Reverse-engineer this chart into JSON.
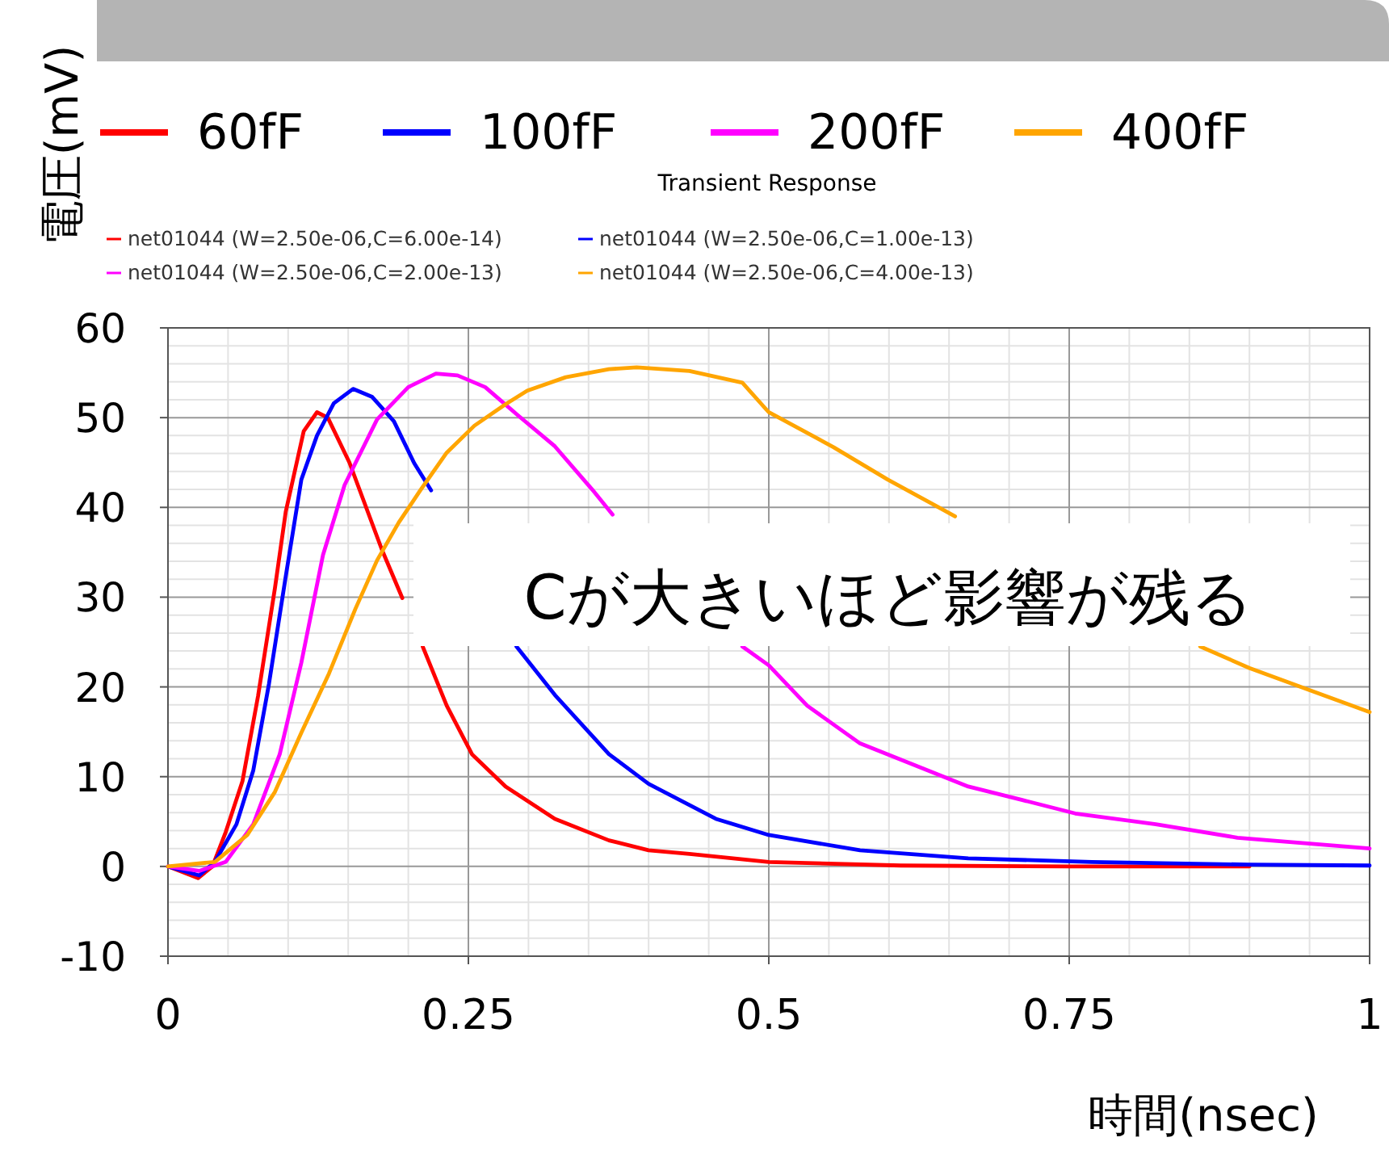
{
  "chart_data": {
    "type": "line",
    "title": "Transient Response",
    "xlabel": "時間(nsec)",
    "ylabel": "電圧(mV)",
    "xlim": [
      0,
      1
    ],
    "ylim": [
      -10,
      60
    ],
    "xticks": [
      0,
      0.25,
      0.5,
      0.75,
      1
    ],
    "yticks": [
      -10,
      0,
      10,
      20,
      30,
      40,
      50,
      60
    ],
    "grid": true,
    "legend": "top",
    "marker": "none",
    "line_style": "solid",
    "annotations": [
      "net01044 (W=2.50e-06,C=6.00e-14)",
      "net01044 (W=2.50e-06,C=1.00e-13)",
      "net01044 (W=2.50e-06,C=2.00e-13)",
      "net01044 (W=2.50e-06,C=4.00e-13)",
      "Cが大きいほど影響が残る"
    ],
    "series": [
      {
        "name": "60fF",
        "color": "#ff0000",
        "x": [
          0,
          0.025,
          0.037,
          0.048,
          0.062,
          0.075,
          0.089,
          0.098,
          0.113,
          0.124,
          0.133,
          0.151,
          0.178,
          0.195,
          0.2,
          0.212,
          0.232,
          0.253,
          0.281,
          0.322,
          0.367,
          0.4,
          0.434,
          0.5,
          0.61,
          0.75,
          0.9
        ],
        "values": [
          0,
          -1.3,
          0,
          3.8,
          9.5,
          19,
          31,
          39.5,
          48.5,
          50.6,
          50,
          45,
          35.3,
          29.9,
          null,
          24.5,
          17.9,
          12.5,
          8.9,
          5.3,
          2.9,
          1.8,
          1.4,
          0.5,
          0.1,
          0,
          0
        ]
      },
      {
        "name": "100fF",
        "color": "#0000ff",
        "x": [
          0,
          0.026,
          0.039,
          0.057,
          0.071,
          0.084,
          0.098,
          0.111,
          0.124,
          0.138,
          0.154,
          0.17,
          0.188,
          0.205,
          0.219,
          0.25,
          0.29,
          0.322,
          0.367,
          0.4,
          0.456,
          0.5,
          0.576,
          0.666,
          0.769,
          0.9,
          1
        ],
        "values": [
          0,
          -1,
          0.5,
          4.7,
          10.7,
          20.3,
          32.3,
          43.1,
          48,
          51.6,
          53.2,
          52.3,
          49.6,
          44.9,
          41.9,
          null,
          24.5,
          19.1,
          12.5,
          9.2,
          5.3,
          3.5,
          1.8,
          0.9,
          0.5,
          0.2,
          0.1
        ]
      },
      {
        "name": "200fF",
        "color": "#ff00ff",
        "x": [
          0,
          0.026,
          0.048,
          0.071,
          0.093,
          0.111,
          0.129,
          0.147,
          0.174,
          0.2,
          0.223,
          0.241,
          0.264,
          0.29,
          0.322,
          0.353,
          0.37,
          0.45,
          0.478,
          0.5,
          0.532,
          0.576,
          0.621,
          0.666,
          0.711,
          0.755,
          0.822,
          0.89,
          1
        ],
        "values": [
          0,
          -0.5,
          0.5,
          4.7,
          12.5,
          22.7,
          34.7,
          42.5,
          49.8,
          53.4,
          54.9,
          54.7,
          53.4,
          50.4,
          46.8,
          42,
          39.2,
          null,
          24.5,
          22.4,
          17.9,
          13.7,
          11.3,
          8.9,
          7.4,
          5.9,
          4.7,
          3.2,
          2
        ]
      },
      {
        "name": "400fF",
        "color": "#ffa500",
        "x": [
          0,
          0.039,
          0.066,
          0.089,
          0.111,
          0.134,
          0.156,
          0.174,
          0.192,
          0.21,
          0.232,
          0.255,
          0.281,
          0.299,
          0.331,
          0.367,
          0.39,
          0.434,
          0.478,
          0.5,
          0.554,
          0.599,
          0.64,
          0.655,
          0.75,
          0.859,
          0.9,
          0.949,
          1
        ],
        "values": [
          0,
          0.5,
          3.5,
          8.3,
          14.9,
          21.5,
          28.7,
          34.1,
          38.3,
          41.9,
          46.1,
          49.1,
          51.5,
          53,
          54.5,
          55.4,
          55.6,
          55.2,
          53.9,
          50.6,
          46.7,
          43.1,
          40.1,
          39,
          null,
          24.5,
          22.1,
          19.7,
          17.2
        ]
      }
    ]
  }
}
